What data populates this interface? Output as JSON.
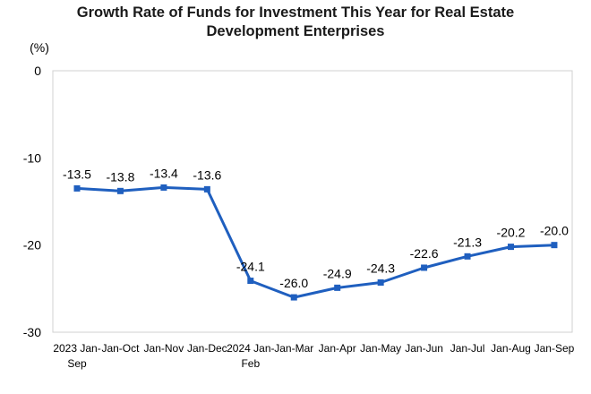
{
  "chart_data": {
    "type": "line",
    "title_lines": [
      "Growth Rate of Funds for Investment This Year for Real Estate",
      "Development Enterprises"
    ],
    "y_unit": "(%)",
    "ylim": [
      -30,
      0
    ],
    "y_ticks": [
      "0",
      "-10",
      "-20",
      "-30"
    ],
    "y_tick_values": [
      0,
      -10,
      -20,
      -30
    ],
    "grid": false,
    "legend": "none",
    "categories": [
      [
        "2023 Jan-",
        "Sep"
      ],
      [
        "Jan-Oct"
      ],
      [
        "Jan-Nov"
      ],
      [
        "Jan-Dec"
      ],
      [
        "2024 Jan-",
        "Feb"
      ],
      [
        "Jan-Mar"
      ],
      [
        "Jan-Apr"
      ],
      [
        "Jan-May"
      ],
      [
        "Jan-Jun"
      ],
      [
        "Jan-Jul"
      ],
      [
        "Jan-Aug"
      ],
      [
        "Jan-Sep"
      ]
    ],
    "values": [
      -13.5,
      -13.8,
      -13.4,
      -13.6,
      -24.1,
      -26.0,
      -24.9,
      -24.3,
      -22.6,
      -21.3,
      -20.2,
      -20.0
    ],
    "value_labels": [
      "-13.5",
      "-13.8",
      "-13.4",
      "-13.6",
      "-24.1",
      "-26.0",
      "-24.9",
      "-24.3",
      "-22.6",
      "-21.3",
      "-20.2",
      "-20.0"
    ],
    "line_color": "#1f5fbf"
  }
}
